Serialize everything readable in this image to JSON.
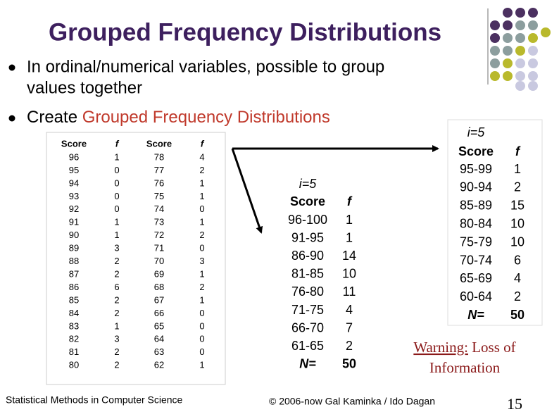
{
  "title": "Grouped Frequency Distributions",
  "bullets": [
    {
      "text": "In ordinal/numerical variables, possible to group",
      "text2": "values together"
    },
    {
      "text": "Create ",
      "highlight": "Grouped Frequency Distributions"
    }
  ],
  "raw_table": {
    "header": [
      "Score",
      "f",
      "Score",
      "f"
    ],
    "rows": [
      [
        96,
        1,
        78,
        4
      ],
      [
        95,
        0,
        77,
        2
      ],
      [
        94,
        0,
        76,
        1
      ],
      [
        93,
        0,
        75,
        1
      ],
      [
        92,
        0,
        74,
        0
      ],
      [
        91,
        1,
        73,
        1
      ],
      [
        90,
        1,
        72,
        2
      ],
      [
        89,
        3,
        71,
        0
      ],
      [
        88,
        2,
        70,
        3
      ],
      [
        87,
        2,
        69,
        1
      ],
      [
        86,
        6,
        68,
        2
      ],
      [
        85,
        2,
        67,
        1
      ],
      [
        84,
        2,
        66,
        0
      ],
      [
        83,
        1,
        65,
        0
      ],
      [
        82,
        3,
        64,
        0
      ],
      [
        81,
        2,
        63,
        0
      ],
      [
        80,
        2,
        62,
        1
      ]
    ]
  },
  "grouped_table_a": {
    "interval": "i=5",
    "header": [
      "Score",
      "f"
    ],
    "rows": [
      [
        "96-100",
        1
      ],
      [
        "91-95",
        1
      ],
      [
        "86-90",
        14
      ],
      [
        "81-85",
        10
      ],
      [
        "76-80",
        11
      ],
      [
        "71-75",
        4
      ],
      [
        "66-70",
        7
      ],
      [
        "61-65",
        2
      ]
    ],
    "total": [
      "N=",
      50
    ]
  },
  "grouped_table_b": {
    "interval": "i=5",
    "header": [
      "Score",
      "f"
    ],
    "rows": [
      [
        "95-99",
        1
      ],
      [
        "90-94",
        2
      ],
      [
        "85-89",
        15
      ],
      [
        "80-84",
        10
      ],
      [
        "75-79",
        10
      ],
      [
        "70-74",
        6
      ],
      [
        "65-69",
        4
      ],
      [
        "60-64",
        2
      ]
    ],
    "total": [
      "N=",
      50
    ]
  },
  "warning": {
    "label": "Warning:",
    "text": " Loss of",
    "text2": "Information"
  },
  "footer": {
    "left": "Statistical Methods in Computer Science",
    "center": "© 2006-now  Gal Kaminka / Ido Dagan",
    "page": 15
  }
}
